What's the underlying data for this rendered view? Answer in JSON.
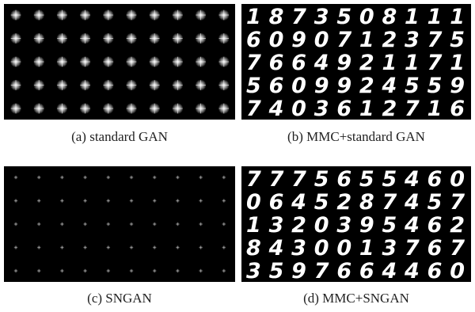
{
  "panels": [
    {
      "caption": "(a) standard GAN"
    },
    {
      "caption": "(b) MMC+standard GAN",
      "digits": [
        "1873508111",
        "6090712375",
        "7664921171",
        "5609924559",
        "7403612716"
      ]
    },
    {
      "caption": "(c) SNGAN"
    },
    {
      "caption": "(d) MMC+SNGAN",
      "digits": [
        "7775655460",
        "0645287457",
        "1320395462",
        "8430013767",
        "3597664460"
      ]
    }
  ]
}
